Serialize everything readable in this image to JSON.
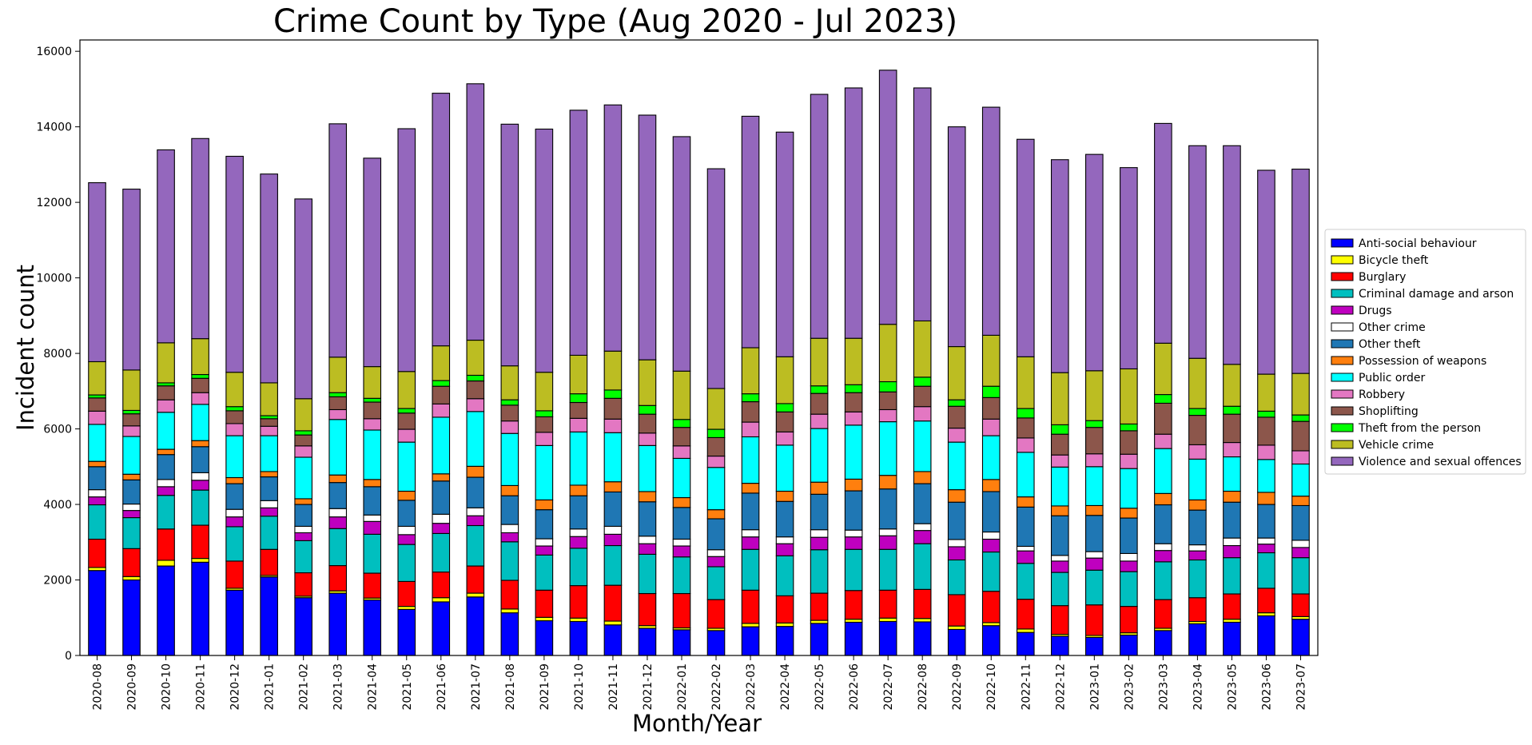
{
  "chart_data": {
    "type": "bar",
    "stacked": true,
    "title": "Crime Count by Type (Aug 2020 - Jul 2023)",
    "xlabel": "Month/Year",
    "ylabel": "Incident count",
    "ylim": [
      0,
      16300
    ],
    "yticks": [
      0,
      2000,
      4000,
      6000,
      8000,
      10000,
      12000,
      14000,
      16000
    ],
    "grid": false,
    "legend_position": "center-right outside",
    "categories": [
      "2020-08",
      "2020-09",
      "2020-10",
      "2020-11",
      "2020-12",
      "2021-01",
      "2021-02",
      "2021-03",
      "2021-04",
      "2021-05",
      "2021-06",
      "2021-07",
      "2021-08",
      "2021-09",
      "2021-10",
      "2021-11",
      "2021-12",
      "2022-01",
      "2022-02",
      "2022-03",
      "2022-04",
      "2022-05",
      "2022-06",
      "2022-07",
      "2022-08",
      "2022-09",
      "2022-10",
      "2022-11",
      "2022-12",
      "2023-01",
      "2023-02",
      "2023-03",
      "2023-04",
      "2023-05",
      "2023-06",
      "2023-07"
    ],
    "series": [
      {
        "name": "Anti-social behaviour",
        "color": "#0000ff",
        "values": [
          2250,
          2000,
          2370,
          2470,
          1730,
          2080,
          1530,
          1650,
          1470,
          1220,
          1420,
          1550,
          1130,
          920,
          900,
          810,
          720,
          680,
          660,
          760,
          770,
          850,
          880,
          900,
          890,
          690,
          790,
          610,
          510,
          480,
          540,
          660,
          840,
          880,
          1050,
          960
        ]
      },
      {
        "name": "Bicycle theft",
        "color": "#ffff00",
        "values": [
          80,
          90,
          150,
          100,
          50,
          40,
          40,
          60,
          50,
          80,
          110,
          100,
          100,
          90,
          90,
          100,
          70,
          50,
          60,
          90,
          90,
          80,
          80,
          90,
          90,
          90,
          80,
          90,
          50,
          50,
          60,
          60,
          60,
          80,
          80,
          70
        ]
      },
      {
        "name": "Burglary",
        "color": "#ff0000",
        "values": [
          750,
          740,
          830,
          880,
          720,
          690,
          620,
          670,
          660,
          660,
          680,
          720,
          760,
          720,
          860,
          950,
          850,
          910,
          760,
          880,
          720,
          720,
          760,
          740,
          770,
          830,
          830,
          790,
          760,
          810,
          700,
          760,
          630,
          670,
          650,
          600
        ]
      },
      {
        "name": "Criminal damage and arson",
        "color": "#00bfbf",
        "values": [
          910,
          820,
          890,
          930,
          910,
          880,
          850,
          980,
          1030,
          980,
          1020,
          1070,
          1020,
          930,
          990,
          1050,
          1040,
          970,
          870,
          1080,
          1060,
          1150,
          1090,
          1080,
          1210,
          920,
          1040,
          950,
          880,
          920,
          920,
          1000,
          1000,
          960,
          940,
          960
        ]
      },
      {
        "name": "Drugs",
        "color": "#bf00bf",
        "values": [
          210,
          190,
          230,
          260,
          260,
          220,
          210,
          310,
          340,
          260,
          270,
          260,
          240,
          240,
          310,
          300,
          280,
          290,
          270,
          330,
          320,
          330,
          330,
          360,
          350,
          350,
          340,
          330,
          300,
          320,
          280,
          300,
          240,
          320,
          230,
          270
        ]
      },
      {
        "name": "Other crime",
        "color": "#ffffff",
        "values": [
          190,
          170,
          190,
          200,
          200,
          190,
          170,
          220,
          170,
          220,
          240,
          210,
          220,
          190,
          200,
          210,
          200,
          180,
          180,
          190,
          180,
          200,
          180,
          180,
          180,
          190,
          190,
          120,
          150,
          170,
          200,
          180,
          160,
          200,
          160,
          190
        ]
      },
      {
        "name": "Other theft",
        "color": "#1f77b4",
        "values": [
          610,
          640,
          660,
          690,
          680,
          630,
          580,
          690,
          750,
          690,
          880,
          810,
          760,
          770,
          880,
          910,
          910,
          840,
          820,
          970,
          940,
          940,
          1040,
          1060,
          1060,
          990,
          1070,
          1040,
          1050,
          960,
          940,
          1030,
          920,
          950,
          890,
          920
        ]
      },
      {
        "name": "Possession of weapons",
        "color": "#ff7f0e",
        "values": [
          140,
          150,
          140,
          160,
          160,
          140,
          150,
          200,
          190,
          240,
          190,
          290,
          270,
          260,
          280,
          270,
          270,
          260,
          240,
          260,
          270,
          320,
          310,
          360,
          320,
          330,
          320,
          270,
          260,
          260,
          260,
          300,
          270,
          290,
          320,
          250
        ]
      },
      {
        "name": "Public order",
        "color": "#00ffff",
        "values": [
          980,
          1000,
          980,
          960,
          1110,
          950,
          1100,
          1470,
          1310,
          1300,
          1500,
          1450,
          1380,
          1440,
          1410,
          1300,
          1220,
          1040,
          1120,
          1230,
          1220,
          1420,
          1430,
          1420,
          1340,
          1260,
          1160,
          1180,
          1030,
          1030,
          1050,
          1190,
          1080,
          910,
          870,
          850
        ]
      },
      {
        "name": "Robbery",
        "color": "#e377c2",
        "values": [
          350,
          280,
          330,
          310,
          320,
          250,
          300,
          260,
          300,
          340,
          350,
          340,
          330,
          350,
          360,
          360,
          330,
          330,
          300,
          390,
          350,
          380,
          350,
          320,
          380,
          370,
          440,
          380,
          320,
          340,
          380,
          380,
          380,
          380,
          380,
          350
        ]
      },
      {
        "name": "Shoplifting",
        "color": "#8c564b",
        "values": [
          350,
          320,
          370,
          380,
          340,
          200,
          290,
          340,
          440,
          430,
          470,
          470,
          420,
          410,
          420,
          550,
          500,
          490,
          490,
          540,
          530,
          550,
          510,
          470,
          540,
          580,
          570,
          530,
          550,
          700,
          620,
          820,
          780,
          750,
          740,
          780
        ]
      },
      {
        "name": "Theft from the person",
        "color": "#00ff00",
        "values": [
          80,
          90,
          80,
          100,
          110,
          80,
          110,
          110,
          100,
          120,
          150,
          150,
          140,
          160,
          230,
          220,
          230,
          210,
          220,
          210,
          220,
          200,
          210,
          270,
          240,
          170,
          300,
          250,
          250,
          180,
          180,
          230,
          180,
          210,
          160,
          170
        ]
      },
      {
        "name": "Vehicle crime",
        "color": "#bcbd22",
        "values": [
          880,
          1070,
          1060,
          950,
          910,
          870,
          850,
          940,
          840,
          980,
          920,
          930,
          900,
          1020,
          1020,
          1030,
          1210,
          1280,
          1080,
          1220,
          1240,
          1260,
          1230,
          1520,
          1490,
          1410,
          1350,
          1370,
          1380,
          1320,
          1460,
          1360,
          1330,
          1110,
          980,
          1100
        ]
      },
      {
        "name": "Violence and sexual offences",
        "color": "#9467bd",
        "values": [
          4740,
          4790,
          5110,
          5300,
          5720,
          5530,
          5290,
          6180,
          5520,
          6430,
          6690,
          6790,
          6400,
          6440,
          6490,
          6520,
          6480,
          6210,
          5820,
          6130,
          5950,
          6460,
          6630,
          6730,
          6170,
          5820,
          6040,
          5760,
          5640,
          5730,
          5330,
          5820,
          5630,
          5790,
          5400,
          5410
        ]
      }
    ]
  }
}
